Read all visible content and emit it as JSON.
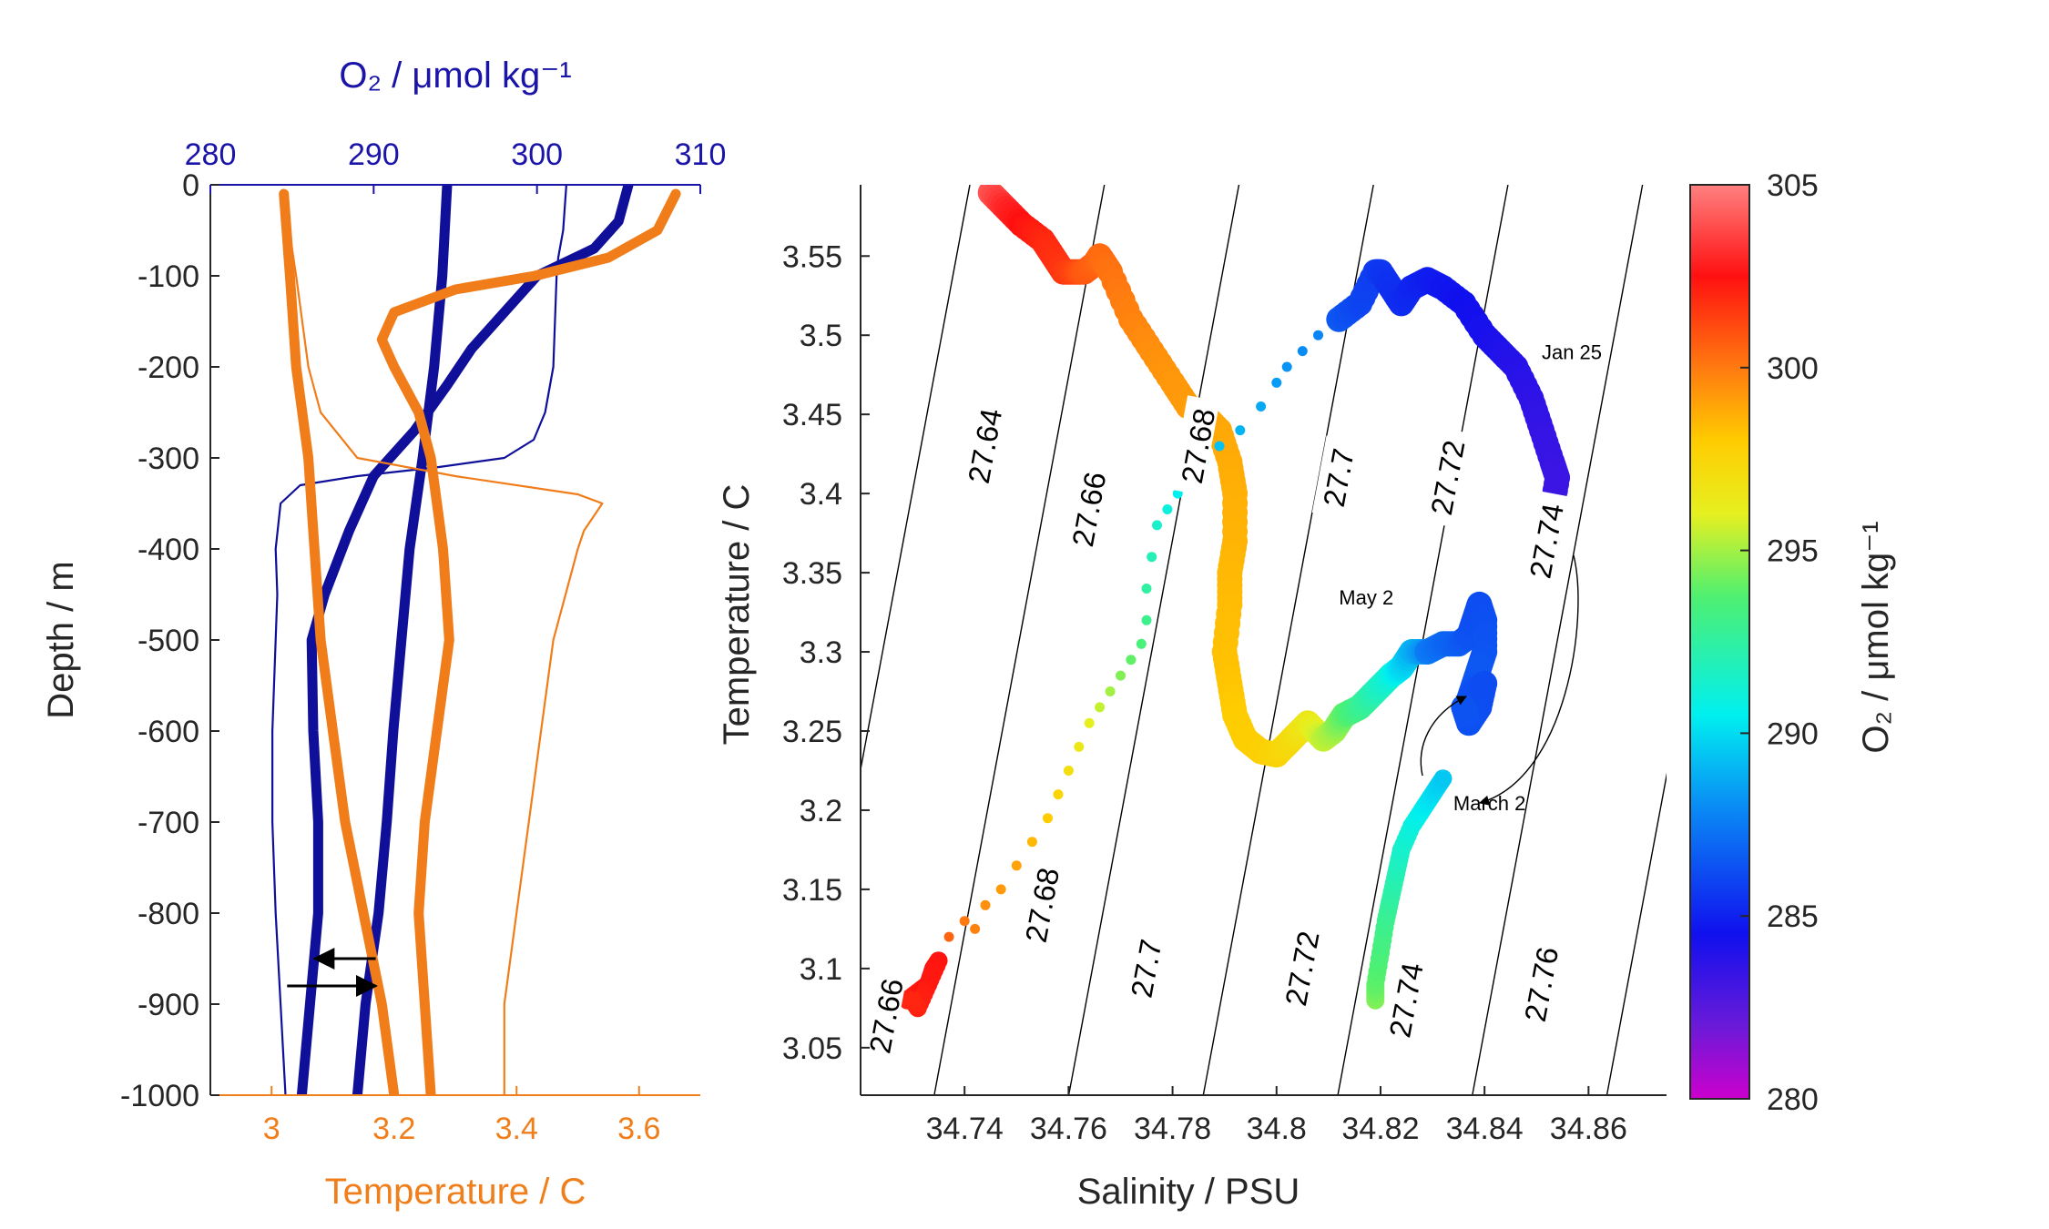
{
  "colors": {
    "oxygen_axis": "#1a14a8",
    "temperature_axis": "#ef7e1b",
    "profile_blue": "#0f0f9a",
    "profile_orange": "#f07d1a",
    "colormap": "jet-like: magenta (280) → blue → cyan → green → yellow → orange → red → pink (305)"
  },
  "chart_data": [
    {
      "type": "line",
      "panel": "left",
      "top_axis_label": "O₂ / μmol kg⁻¹",
      "xlabel": "Temperature / C",
      "ylabel": "Depth / m",
      "ylim": [
        -1000,
        0
      ],
      "xlim_temperature": [
        2.9,
        3.7
      ],
      "xlim_oxygen": [
        280,
        310
      ],
      "y_ticks": [
        "0",
        "-100",
        "-200",
        "-300",
        "-400",
        "-500",
        "-600",
        "-700",
        "-800",
        "-900",
        "-1000"
      ],
      "temperature_ticks": [
        "3",
        "3.2",
        "3.4",
        "3.6"
      ],
      "oxygen_ticks": [
        "280",
        "290",
        "300",
        "310"
      ],
      "series": [
        {
          "axis": "oxygen",
          "style": "thick",
          "depth": [
            0,
            -40,
            -70,
            -100,
            -140,
            -180,
            -220,
            -270,
            -320,
            -380,
            -450,
            -500,
            -600,
            -700,
            -800,
            -900,
            -1000
          ],
          "values": [
            305.6,
            305,
            303.5,
            300,
            298,
            296,
            294.5,
            292.5,
            290,
            288.5,
            287,
            286.2,
            286.3,
            286.6,
            286.6,
            286.1,
            285.6
          ]
        },
        {
          "axis": "oxygen",
          "style": "thick",
          "depth": [
            0,
            -100,
            -200,
            -300,
            -400,
            -500,
            -600,
            -700,
            -800,
            -850,
            -900,
            -1000
          ],
          "values": [
            294.5,
            294.2,
            293.7,
            293,
            292.2,
            291.7,
            291.2,
            290.8,
            290.3,
            289.9,
            289.5,
            289
          ]
        },
        {
          "axis": "oxygen",
          "style": "thin",
          "depth": [
            0,
            -50,
            -80,
            -100,
            -200,
            -250,
            -280,
            -300,
            -310,
            -320,
            -330,
            -350,
            -400,
            -450,
            -500,
            -600,
            -700,
            -800,
            -900,
            -1000
          ],
          "values": [
            301.8,
            301.6,
            301.3,
            301.2,
            301,
            300.5,
            299.8,
            298,
            294,
            289,
            285.5,
            284.3,
            284,
            284.1,
            284,
            283.8,
            283.8,
            284,
            284.3,
            284.6
          ]
        },
        {
          "axis": "temperature",
          "style": "thick",
          "depth": [
            -10,
            -50,
            -80,
            -100,
            -115,
            -140,
            -170,
            -200,
            -250,
            -300,
            -350,
            -400,
            -500,
            -600,
            -700,
            -800,
            -900,
            -1000
          ],
          "values": [
            3.66,
            3.63,
            3.55,
            3.43,
            3.3,
            3.2,
            3.18,
            3.2,
            3.24,
            3.26,
            3.27,
            3.28,
            3.29,
            3.27,
            3.25,
            3.24,
            3.25,
            3.26
          ]
        },
        {
          "axis": "temperature",
          "style": "thick",
          "depth": [
            -10,
            -100,
            -200,
            -300,
            -400,
            -500,
            -600,
            -700,
            -800,
            -900,
            -1000
          ],
          "values": [
            3.02,
            3.03,
            3.04,
            3.06,
            3.07,
            3.08,
            3.1,
            3.12,
            3.15,
            3.18,
            3.2
          ]
        },
        {
          "axis": "temperature",
          "style": "thin",
          "depth": [
            -10,
            -100,
            -200,
            -250,
            -300,
            -320,
            -340,
            -350,
            -360,
            -380,
            -400,
            -500,
            -600,
            -700,
            -800,
            -900,
            -1000
          ],
          "values": [
            3.02,
            3.04,
            3.06,
            3.08,
            3.14,
            3.3,
            3.5,
            3.54,
            3.53,
            3.51,
            3.5,
            3.46,
            3.44,
            3.42,
            3.4,
            3.38,
            3.38
          ]
        }
      ],
      "annotations": [
        {
          "type": "arrow",
          "depth": -850,
          "from_temperature": 3.17,
          "to_oxygen": 286.4
        },
        {
          "type": "arrow",
          "depth": -880,
          "from_oxygen": 284.7,
          "to_temperature": 3.17
        }
      ]
    },
    {
      "type": "scatter",
      "panel": "right",
      "xlabel": "Salinity / PSU",
      "ylabel": "Temperature / C",
      "xlim": [
        34.72,
        34.875
      ],
      "ylim": [
        3.02,
        3.595
      ],
      "x_ticks": [
        "34.74",
        "34.76",
        "34.78",
        "34.8",
        "34.82",
        "34.84",
        "34.86"
      ],
      "y_ticks": [
        "3.05",
        "3.1",
        "3.15",
        "3.2",
        "3.25",
        "3.3",
        "3.35",
        "3.4",
        "3.45",
        "3.5",
        "3.55"
      ],
      "colorbar": {
        "label": "O₂ / μmol kg⁻¹",
        "range": [
          280,
          305
        ],
        "ticks": [
          "280",
          "285",
          "290",
          "295",
          "300",
          "305"
        ]
      },
      "isopycnals": [
        {
          "label": "27.64",
          "value": 27.64
        },
        {
          "label": "27.66",
          "value": 27.66
        },
        {
          "label": "27.68",
          "value": 27.68
        },
        {
          "label": "27.7",
          "value": 27.7
        },
        {
          "label": "27.72",
          "value": 27.72
        },
        {
          "label": "27.74",
          "value": 27.74
        },
        {
          "label": "27.76",
          "value": 27.76
        }
      ],
      "isopycnal_labels": [
        {
          "text": "27.64",
          "S": 34.744,
          "T": 3.43
        },
        {
          "text": "27.66",
          "S": 34.764,
          "T": 3.39
        },
        {
          "text": "27.68",
          "S": 34.785,
          "T": 3.43
        },
        {
          "text": "27.7",
          "S": 34.812,
          "T": 3.41
        },
        {
          "text": "27.72",
          "S": 34.833,
          "T": 3.41
        },
        {
          "text": "27.74",
          "S": 34.852,
          "T": 3.37
        },
        {
          "text": "27.66",
          "S": 34.725,
          "T": 3.07
        },
        {
          "text": "27.68",
          "S": 34.755,
          "T": 3.14
        },
        {
          "text": "27.7",
          "S": 34.775,
          "T": 3.1
        },
        {
          "text": "27.72",
          "S": 34.805,
          "T": 3.1
        },
        {
          "text": "27.74",
          "S": 34.825,
          "T": 3.08
        },
        {
          "text": "27.76",
          "S": 34.851,
          "T": 3.09
        }
      ],
      "tracks": [
        {
          "style": "thick",
          "S": [
            34.745,
            34.748,
            34.751,
            34.755,
            34.757,
            34.759,
            34.761,
            34.763,
            34.765,
            34.766,
            34.768,
            34.772,
            34.776,
            34.78,
            34.783,
            34.786,
            34.789,
            34.791,
            34.792,
            34.792,
            34.791,
            34.791,
            34.79,
            34.791,
            34.792,
            34.794,
            34.797,
            34.8,
            34.803,
            34.806,
            34.809,
            34.811,
            34.813,
            34.816,
            34.819,
            34.822,
            34.824,
            34.826,
            34.829
          ],
          "T": [
            3.59,
            3.58,
            3.57,
            3.56,
            3.55,
            3.54,
            3.54,
            3.54,
            3.545,
            3.55,
            3.54,
            3.51,
            3.49,
            3.47,
            3.455,
            3.45,
            3.44,
            3.42,
            3.4,
            3.37,
            3.35,
            3.33,
            3.3,
            3.28,
            3.26,
            3.245,
            3.237,
            3.235,
            3.245,
            3.255,
            3.245,
            3.25,
            3.26,
            3.265,
            3.275,
            3.285,
            3.29,
            3.3,
            3.3
          ],
          "O2": [
            304,
            303,
            302.5,
            302,
            301.8,
            301.6,
            301.3,
            300.8,
            300.6,
            300.4,
            300.2,
            299.8,
            299.5,
            299.3,
            299.2,
            299,
            298.9,
            298.8,
            298.7,
            298.6,
            298.5,
            298.4,
            298.3,
            298.2,
            298,
            297.9,
            297.8,
            297.6,
            297.2,
            296.5,
            295.5,
            295,
            294,
            293,
            292,
            291,
            290,
            289,
            288
          ]
        },
        {
          "style": "thick",
          "S": [
            34.829,
            34.832,
            34.835,
            34.837,
            34.838,
            34.839,
            34.84,
            34.84,
            34.839,
            34.838,
            34.837,
            34.838,
            34.84,
            34.839,
            34.837,
            34.836
          ],
          "T": [
            3.3,
            3.305,
            3.305,
            3.31,
            3.32,
            3.33,
            3.32,
            3.3,
            3.29,
            3.28,
            3.27,
            3.275,
            3.28,
            3.265,
            3.255,
            3.265
          ],
          "O2": [
            287.5,
            287,
            286.7,
            286.4,
            286.3,
            286.2,
            286.3,
            286.4,
            286.5,
            286.5,
            286.4,
            286.3,
            286.2,
            286.2,
            286.3,
            286.4
          ]
        },
        {
          "style": "medium",
          "S": [
            34.729,
            34.731,
            34.733,
            34.734,
            34.735,
            34.733,
            34.731,
            34.73
          ],
          "T": [
            3.08,
            3.085,
            3.09,
            3.1,
            3.105,
            3.09,
            3.075,
            3.08
          ],
          "O2": [
            302,
            302.2,
            302.5,
            302.6,
            302.4,
            302.3,
            302.1,
            302
          ]
        },
        {
          "style": "dots",
          "S": [
            34.737,
            34.74,
            34.742,
            34.744,
            34.747,
            34.75,
            34.753,
            34.756,
            34.758,
            34.76,
            34.762,
            34.764,
            34.766,
            34.768,
            34.77,
            34.772,
            34.774,
            34.775,
            34.775,
            34.776,
            34.777,
            34.779,
            34.781,
            34.783,
            34.786,
            34.789,
            34.793,
            34.797,
            34.8,
            34.802,
            34.805,
            34.808,
            34.812
          ],
          "T": [
            3.12,
            3.13,
            3.125,
            3.14,
            3.15,
            3.165,
            3.18,
            3.195,
            3.21,
            3.225,
            3.24,
            3.255,
            3.265,
            3.275,
            3.285,
            3.295,
            3.305,
            3.32,
            3.34,
            3.36,
            3.38,
            3.39,
            3.4,
            3.41,
            3.42,
            3.43,
            3.44,
            3.455,
            3.47,
            3.48,
            3.49,
            3.5,
            3.51
          ],
          "O2": [
            300.5,
            300,
            299.8,
            299.5,
            299.2,
            299,
            298.5,
            298,
            297.5,
            297,
            296.5,
            296,
            295.5,
            295,
            294.5,
            294,
            293.5,
            293,
            292.5,
            292,
            291.5,
            291,
            290.5,
            290,
            289.5,
            289.3,
            289,
            288.7,
            288.4,
            288.2,
            288,
            287.8,
            287.6
          ]
        },
        {
          "style": "thick",
          "S": [
            34.812,
            34.816,
            34.819,
            34.82,
            34.822,
            34.824,
            34.826,
            34.829,
            34.832,
            34.836,
            34.84,
            34.843,
            34.846,
            34.849,
            34.851,
            34.853,
            34.854,
            34.853,
            34.852,
            34.852
          ],
          "T": [
            3.51,
            3.52,
            3.54,
            3.54,
            3.53,
            3.52,
            3.53,
            3.535,
            3.53,
            3.52,
            3.5,
            3.49,
            3.48,
            3.46,
            3.44,
            3.42,
            3.41,
            3.39,
            3.38,
            3.37
          ],
          "O2": [
            286.5,
            286,
            285.8,
            285.6,
            285.4,
            285.3,
            285.1,
            284.9,
            284.7,
            284.5,
            284.3,
            284.1,
            283.9,
            283.7,
            283.5,
            283.4,
            283.3,
            283.3,
            283.4,
            283.5
          ]
        },
        {
          "style": "medium",
          "S": [
            34.819,
            34.819,
            34.82,
            34.821,
            34.822,
            34.823,
            34.824,
            34.826,
            34.828,
            34.83,
            34.832
          ],
          "T": [
            3.08,
            3.09,
            3.11,
            3.13,
            3.145,
            3.16,
            3.175,
            3.19,
            3.2,
            3.21,
            3.22
          ],
          "O2": [
            294.5,
            294,
            293.5,
            293,
            292.5,
            292,
            291.5,
            291,
            290.5,
            290,
            289.5
          ]
        }
      ],
      "text_annotations": [
        {
          "text": "Jan 25",
          "S": 34.851,
          "T": 3.485
        },
        {
          "text": "May 2",
          "S": 34.812,
          "T": 3.33
        },
        {
          "text": "March 2",
          "S": 34.834,
          "T": 3.2
        }
      ]
    }
  ]
}
